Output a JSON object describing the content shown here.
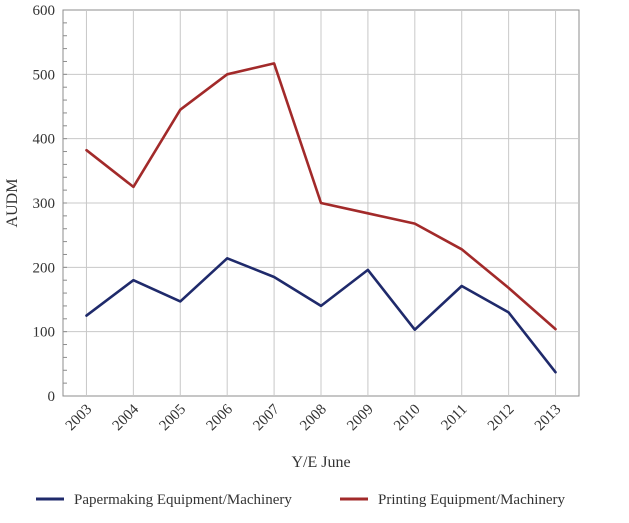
{
  "chart_data": {
    "type": "line",
    "title": "",
    "xlabel": "Y/E June",
    "ylabel": "AUDM",
    "ylim": [
      0,
      600
    ],
    "yticks": [
      0,
      100,
      200,
      300,
      400,
      500,
      600
    ],
    "categories": [
      "2003",
      "2004",
      "2005",
      "2006",
      "2007",
      "2008",
      "2009",
      "2010",
      "2011",
      "2012",
      "2013"
    ],
    "series": [
      {
        "name": "Papermaking Equipment/Machinery",
        "color": "#1f2a6b",
        "values": [
          125,
          180,
          147,
          214,
          185,
          140,
          196,
          103,
          171,
          130,
          37
        ]
      },
      {
        "name": "Printing Equipment/Machinery",
        "color": "#a22a2a",
        "values": [
          382,
          325,
          445,
          500,
          517,
          300,
          284,
          268,
          228,
          168,
          104
        ]
      }
    ],
    "grid": true,
    "legend_position": "bottom"
  }
}
